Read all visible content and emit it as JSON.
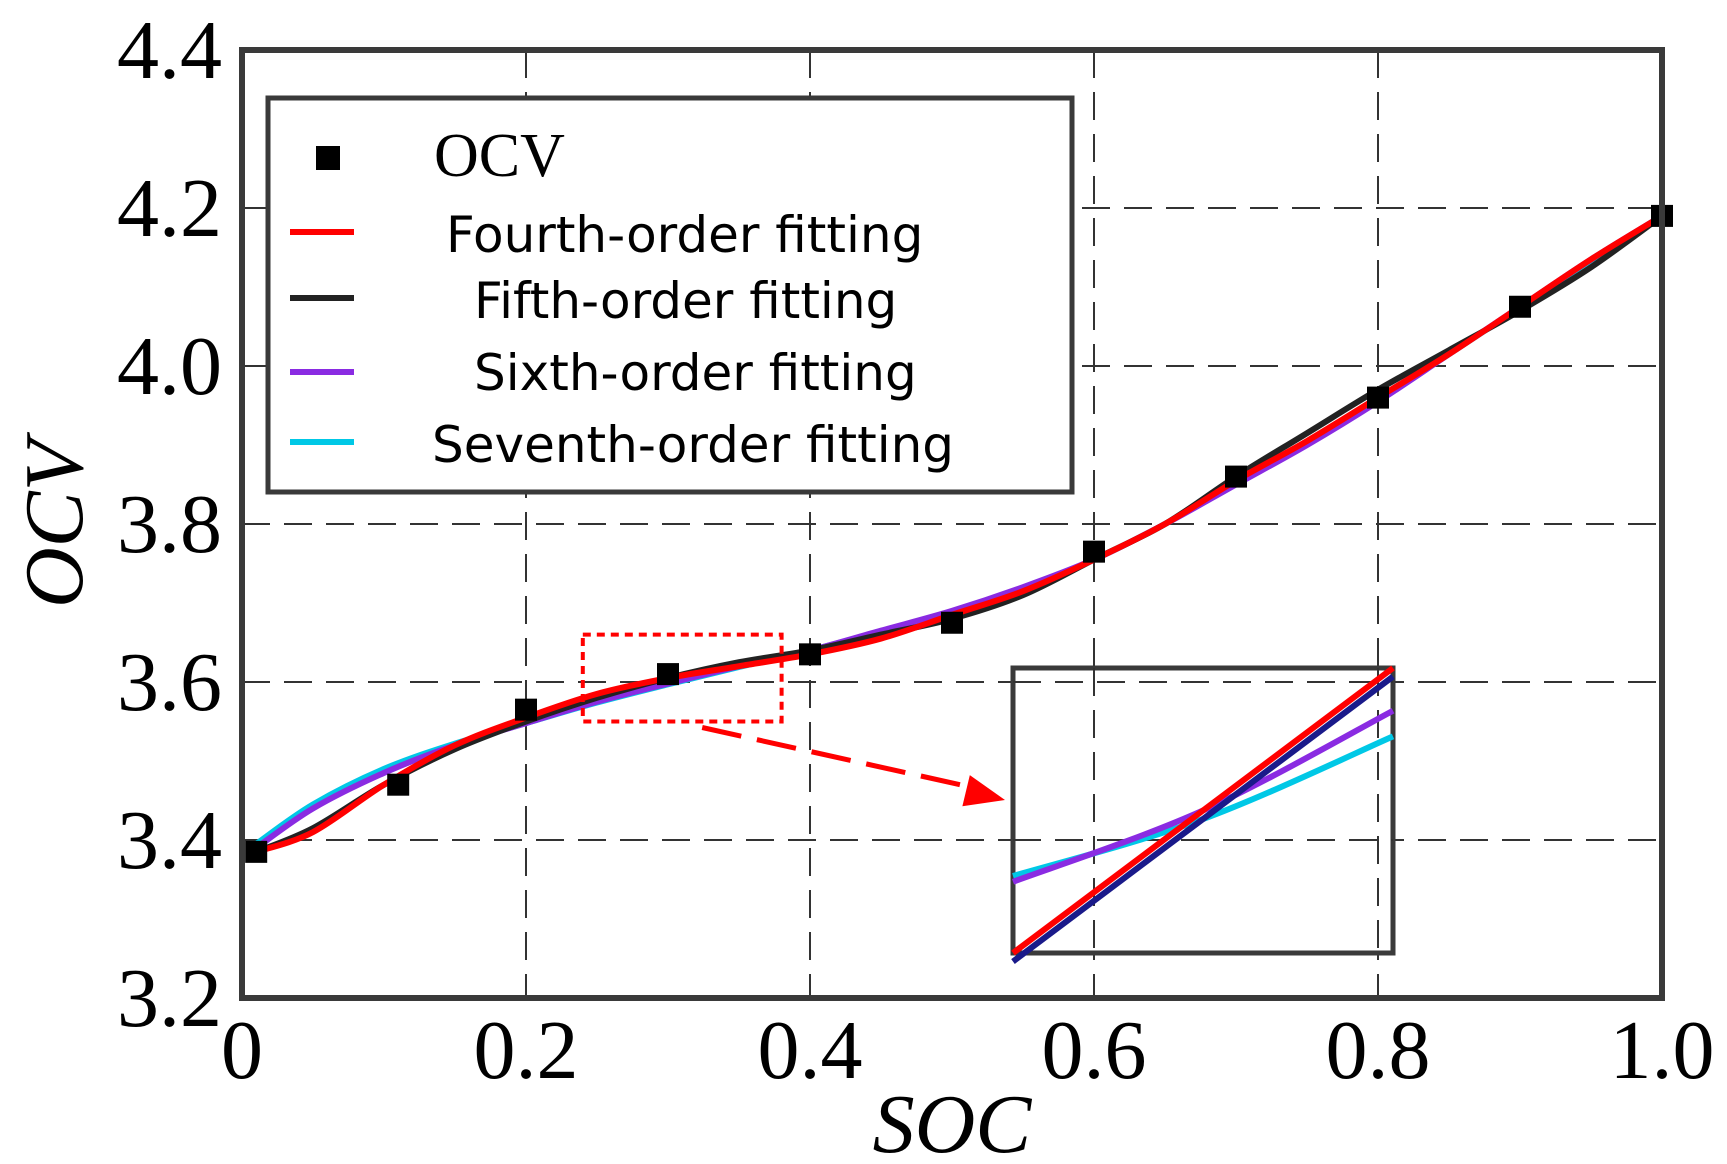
{
  "chart_data": {
    "type": "line",
    "xlabel": "SOC",
    "ylabel": "OCV",
    "xlim": [
      0,
      1.0
    ],
    "ylim": [
      3.2,
      4.4
    ],
    "x_ticks": [
      "0",
      "0.2",
      "0.4",
      "0.6",
      "0.8",
      "1.0"
    ],
    "y_ticks": [
      "3.2",
      "3.4",
      "3.6",
      "3.8",
      "4.0",
      "4.2",
      "4.4"
    ],
    "grid": true,
    "legend_position": "top-left",
    "colors": {
      "ocv": "#000000",
      "fourth": "#ff0000",
      "fifth": "#222222",
      "sixth": "#8a2be2",
      "seventh": "#00c8e6"
    },
    "points": {
      "name": "OCV",
      "x": [
        0.01,
        0.11,
        0.2,
        0.3,
        0.4,
        0.5,
        0.6,
        0.7,
        0.8,
        0.9,
        1.0
      ],
      "y": [
        3.385,
        3.47,
        3.565,
        3.61,
        3.635,
        3.675,
        3.765,
        3.86,
        3.96,
        4.075,
        4.19
      ]
    },
    "series": [
      {
        "name": "Fourth-order fitting",
        "x": [
          0.01,
          0.05,
          0.1,
          0.15,
          0.2,
          0.25,
          0.3,
          0.35,
          0.4,
          0.45,
          0.5,
          0.55,
          0.6,
          0.65,
          0.7,
          0.75,
          0.8,
          0.85,
          0.9,
          0.95,
          1.0
        ],
        "y": [
          3.385,
          3.41,
          3.47,
          3.52,
          3.555,
          3.585,
          3.605,
          3.62,
          3.635,
          3.655,
          3.685,
          3.715,
          3.755,
          3.8,
          3.855,
          3.905,
          3.96,
          4.015,
          4.075,
          4.135,
          4.19
        ]
      },
      {
        "name": "Fifth-order fitting",
        "x": [
          0.01,
          0.05,
          0.1,
          0.15,
          0.2,
          0.25,
          0.3,
          0.35,
          0.4,
          0.45,
          0.5,
          0.55,
          0.6,
          0.65,
          0.7,
          0.75,
          0.8,
          0.85,
          0.9,
          0.95,
          1.0
        ],
        "y": [
          3.385,
          3.415,
          3.47,
          3.515,
          3.55,
          3.58,
          3.605,
          3.625,
          3.64,
          3.66,
          3.68,
          3.71,
          3.755,
          3.8,
          3.86,
          3.915,
          3.97,
          4.02,
          4.07,
          4.125,
          4.19
        ]
      },
      {
        "name": "Sixth-order fitting",
        "x": [
          0.01,
          0.05,
          0.1,
          0.15,
          0.2,
          0.25,
          0.3,
          0.35,
          0.4,
          0.45,
          0.5,
          0.55,
          0.6,
          0.65,
          0.7,
          0.75,
          0.8,
          0.85,
          0.9,
          0.95,
          1.0
        ],
        "y": [
          3.39,
          3.44,
          3.485,
          3.52,
          3.548,
          3.575,
          3.598,
          3.62,
          3.64,
          3.665,
          3.69,
          3.72,
          3.755,
          3.8,
          3.85,
          3.9,
          3.955,
          4.015,
          4.075,
          4.135,
          4.19
        ]
      },
      {
        "name": "Seventh-order fitting",
        "x": [
          0.01,
          0.05,
          0.1,
          0.15,
          0.2,
          0.25,
          0.3,
          0.35,
          0.4,
          0.45,
          0.5,
          0.55,
          0.6,
          0.65,
          0.7,
          0.75,
          0.8,
          0.85,
          0.9,
          0.95,
          1.0
        ],
        "y": [
          3.395,
          3.445,
          3.49,
          3.522,
          3.548,
          3.574,
          3.597,
          3.619,
          3.64,
          3.664,
          3.689,
          3.719,
          3.755,
          3.8,
          3.851,
          3.901,
          3.956,
          4.015,
          4.074,
          4.134,
          4.19
        ]
      }
    ],
    "zoom_region": {
      "x": [
        0.24,
        0.38
      ],
      "y": [
        3.55,
        3.66
      ]
    },
    "inset": {
      "fourth": [
        [
          0,
          0.0
        ],
        [
          1,
          1.0
        ]
      ],
      "fifth": [
        [
          0,
          -0.03
        ],
        [
          1,
          0.97
        ]
      ],
      "sixth": [
        [
          0,
          0.25
        ],
        [
          0.5,
          0.5
        ],
        [
          1,
          0.85
        ]
      ],
      "seventh": [
        [
          0,
          0.27
        ],
        [
          0.5,
          0.47
        ],
        [
          1,
          0.76
        ]
      ]
    }
  }
}
